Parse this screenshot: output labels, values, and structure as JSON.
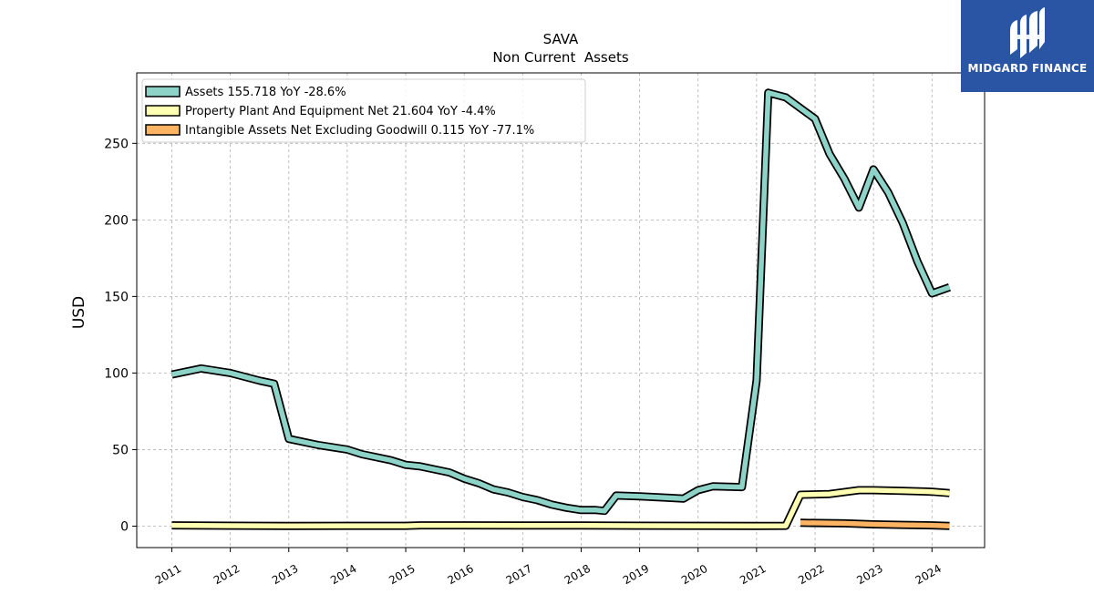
{
  "chart_data": {
    "type": "line",
    "title": "SAVA",
    "subtitle": "Non Current  Assets",
    "ylabel": "USD",
    "xlabel": "",
    "ylim": [
      -14,
      296
    ],
    "xlim": [
      2010.4,
      2024.9
    ],
    "yticks": [
      0,
      50,
      100,
      150,
      200,
      250
    ],
    "xticks": [
      2011,
      2012,
      2013,
      2014,
      2015,
      2016,
      2017,
      2018,
      2019,
      2020,
      2021,
      2022,
      2023,
      2024
    ],
    "grid": true,
    "legend_position": "top-left",
    "series": [
      {
        "name": "Assets  155.718 YoY -28.6%",
        "color": "#8dd3c7",
        "points": [
          [
            2011.0,
            99
          ],
          [
            2011.5,
            103
          ],
          [
            2012.0,
            100
          ],
          [
            2012.5,
            95
          ],
          [
            2012.75,
            93
          ],
          [
            2013.0,
            57
          ],
          [
            2013.5,
            53
          ],
          [
            2014.0,
            50
          ],
          [
            2014.25,
            47
          ],
          [
            2014.75,
            43
          ],
          [
            2015.0,
            40
          ],
          [
            2015.25,
            39
          ],
          [
            2015.75,
            35
          ],
          [
            2016.0,
            31
          ],
          [
            2016.25,
            28
          ],
          [
            2016.5,
            24
          ],
          [
            2016.75,
            22
          ],
          [
            2017.0,
            19
          ],
          [
            2017.25,
            17
          ],
          [
            2017.5,
            14
          ],
          [
            2017.75,
            12
          ],
          [
            2018.0,
            10.5
          ],
          [
            2018.25,
            10.5
          ],
          [
            2018.4,
            10
          ],
          [
            2018.6,
            20
          ],
          [
            2019.0,
            19.5
          ],
          [
            2019.5,
            18.5
          ],
          [
            2019.75,
            18
          ],
          [
            2020.0,
            23.5
          ],
          [
            2020.25,
            26
          ],
          [
            2020.75,
            25.5
          ],
          [
            2021.0,
            95
          ],
          [
            2021.2,
            283
          ],
          [
            2021.5,
            280
          ],
          [
            2022.0,
            266
          ],
          [
            2022.25,
            243
          ],
          [
            2022.5,
            227
          ],
          [
            2022.75,
            208
          ],
          [
            2023.0,
            233
          ],
          [
            2023.25,
            218
          ],
          [
            2023.5,
            198
          ],
          [
            2023.75,
            173
          ],
          [
            2024.0,
            152
          ],
          [
            2024.3,
            156
          ]
        ]
      },
      {
        "name": "Property Plant And Equipment Net  21.604 YoY -4.4%",
        "color": "#ffffb3",
        "points": [
          [
            2011.0,
            0.5
          ],
          [
            2012.0,
            0.3
          ],
          [
            2013.0,
            0.1
          ],
          [
            2014.0,
            0.2
          ],
          [
            2015.0,
            0.2
          ],
          [
            2015.25,
            0.5
          ],
          [
            2016.0,
            0.5
          ],
          [
            2017.0,
            0.4
          ],
          [
            2018.0,
            0.4
          ],
          [
            2019.0,
            0.3
          ],
          [
            2020.0,
            0.2
          ],
          [
            2021.0,
            0.1
          ],
          [
            2021.5,
            0.2
          ],
          [
            2021.75,
            20.5
          ],
          [
            2022.25,
            21
          ],
          [
            2022.75,
            23.5
          ],
          [
            2023.0,
            23.5
          ],
          [
            2023.5,
            23
          ],
          [
            2024.0,
            22.5
          ],
          [
            2024.3,
            21.6
          ]
        ]
      },
      {
        "name": "Intangible Assets Net Excluding Goodwill  0.115 YoY -77.1%",
        "color": "#fdb462",
        "points": [
          [
            2021.75,
            2.2
          ],
          [
            2022.5,
            1.8
          ],
          [
            2023.0,
            1.2
          ],
          [
            2023.5,
            0.8
          ],
          [
            2024.0,
            0.5
          ],
          [
            2024.3,
            0.115
          ]
        ]
      }
    ]
  },
  "logo": {
    "text": "MIDGARD FINANCE",
    "background": "#2a55a5"
  }
}
